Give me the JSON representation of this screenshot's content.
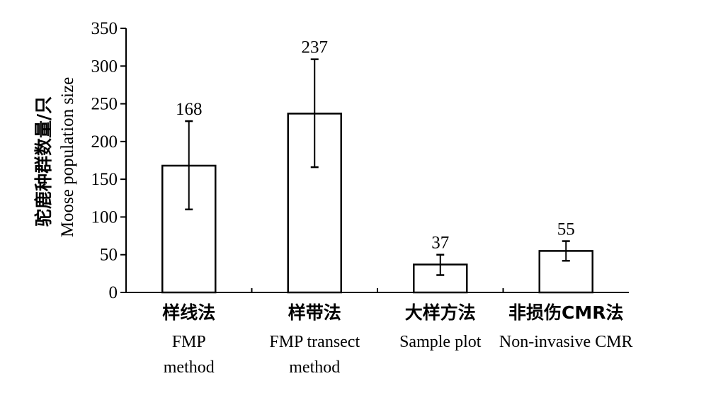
{
  "chart_data": {
    "type": "bar",
    "title": "",
    "ylabel_cn": "驼鹿种群数量/只",
    "ylabel_en": "Moose population size",
    "xlabel": "",
    "ylim": [
      0,
      350
    ],
    "yticks": [
      0,
      50,
      100,
      150,
      200,
      250,
      300,
      350
    ],
    "grid": false,
    "categories": [
      {
        "cn": "样线法",
        "en": [
          "FMP",
          "method"
        ]
      },
      {
        "cn": "样带法",
        "en": [
          "FMP transect",
          "method"
        ]
      },
      {
        "cn": "大样方法",
        "en": [
          "Sample plot"
        ]
      },
      {
        "cn": "非损伤CMR法",
        "en": [
          "Non-invasive CMR"
        ]
      }
    ],
    "values": [
      168,
      237,
      37,
      55
    ],
    "value_labels": [
      "168",
      "237",
      "37",
      "55"
    ],
    "error_low": [
      110,
      166,
      23,
      42
    ],
    "error_high": [
      227,
      309,
      50,
      68
    ],
    "bar_fill": "#ffffff",
    "bar_stroke": "#000000"
  }
}
